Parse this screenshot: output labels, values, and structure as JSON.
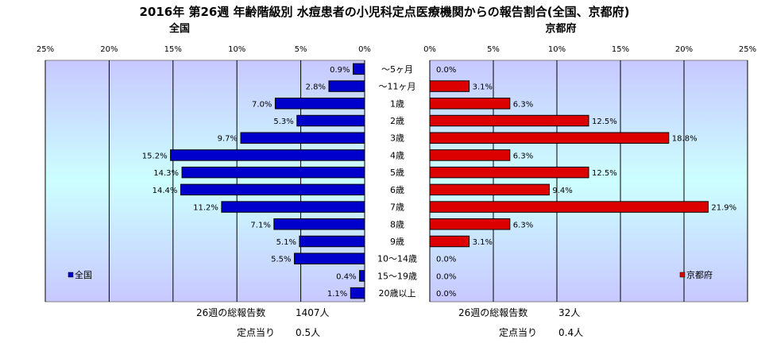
{
  "title": "2016年 第26週 年齢階級別 水痘患者の小児科定点医療機関からの報告割合(全国、京都府)",
  "chart_data": [
    {
      "type": "bar",
      "orientation": "horizontal",
      "direction": "leftward",
      "title": "全国",
      "legend": "全国",
      "legend_position": "bottom-left",
      "color": "#0000cc",
      "xlim": [
        0,
        25
      ],
      "xticks": [
        "25%",
        "20%",
        "15%",
        "10%",
        "5%",
        "0%"
      ],
      "categories": [
        "～5ヶ月",
        "～11ヶ月",
        "1歳",
        "2歳",
        "3歳",
        "4歳",
        "5歳",
        "6歳",
        "7歳",
        "8歳",
        "9歳",
        "10～14歳",
        "15～19歳",
        "20歳以上"
      ],
      "values": [
        0.9,
        2.8,
        7.0,
        5.3,
        9.7,
        15.2,
        14.3,
        14.4,
        11.2,
        7.1,
        5.1,
        5.5,
        0.4,
        1.1
      ],
      "labels": [
        "0.9%",
        "2.8%",
        "7.0%",
        "5.3%",
        "9.7%",
        "15.2%",
        "14.3%",
        "14.4%",
        "11.2%",
        "7.1%",
        "5.1%",
        "5.5%",
        "0.4%",
        "1.1%"
      ]
    },
    {
      "type": "bar",
      "orientation": "horizontal",
      "direction": "rightward",
      "title": "京都府",
      "legend": "京都府",
      "legend_position": "bottom-right",
      "color": "#dd0000",
      "xlim": [
        0,
        25
      ],
      "xticks": [
        "0%",
        "5%",
        "10%",
        "15%",
        "20%",
        "25%"
      ],
      "categories": [
        "～5ヶ月",
        "～11ヶ月",
        "1歳",
        "2歳",
        "3歳",
        "4歳",
        "5歳",
        "6歳",
        "7歳",
        "8歳",
        "9歳",
        "10～14歳",
        "15～19歳",
        "20歳以上"
      ],
      "values": [
        0.0,
        3.1,
        6.3,
        12.5,
        18.8,
        6.3,
        12.5,
        9.4,
        21.9,
        6.3,
        3.1,
        0.0,
        0.0,
        0.0
      ],
      "labels": [
        "0.0%",
        "3.1%",
        "6.3%",
        "12.5%",
        "18.8%",
        "6.3%",
        "12.5%",
        "9.4%",
        "21.9%",
        "6.3%",
        "3.1%",
        "0.0%",
        "0.0%",
        "0.0%"
      ]
    }
  ],
  "stats": {
    "national": {
      "total_label": "26週の総報告数",
      "total_value": "1407人",
      "per_label": "定点当り",
      "per_value": "0.5人"
    },
    "kyoto": {
      "total_label": "26週の総報告数",
      "total_value": "32人",
      "per_label": "定点当り",
      "per_value": "0.4人"
    }
  },
  "colors": {
    "plot_top": "#c8c8ff",
    "plot_mid": "#ccffff",
    "plot_bottom": "#c8c8ff",
    "grid": "#000000"
  }
}
